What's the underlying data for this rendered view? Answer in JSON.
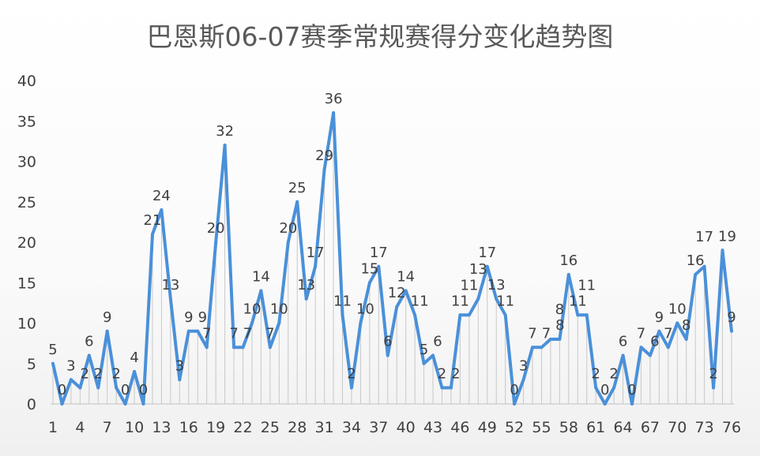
{
  "chart_data": {
    "type": "line",
    "title": "巴恩斯06-07赛季常规赛得分变化趋势图",
    "xlabel": "",
    "ylabel": "",
    "x": [
      1,
      2,
      3,
      4,
      5,
      6,
      7,
      8,
      9,
      10,
      11,
      12,
      13,
      14,
      15,
      16,
      17,
      18,
      19,
      20,
      21,
      22,
      23,
      24,
      25,
      26,
      27,
      28,
      29,
      30,
      31,
      32,
      33,
      34,
      35,
      36,
      37,
      38,
      39,
      40,
      41,
      42,
      43,
      44,
      45,
      46,
      47,
      48,
      49,
      50,
      51,
      52,
      53,
      54,
      55,
      56,
      57,
      58,
      59,
      60,
      61,
      62,
      63,
      64,
      65,
      66,
      67,
      68,
      69,
      70,
      71,
      72,
      73,
      74,
      75,
      76
    ],
    "x_tick_labels": [
      "1",
      "4",
      "7",
      "10",
      "13",
      "16",
      "19",
      "22",
      "25",
      "28",
      "31",
      "34",
      "37",
      "40",
      "43",
      "46",
      "49",
      "52",
      "55",
      "58",
      "61",
      "64",
      "67",
      "70",
      "73",
      "76"
    ],
    "values": [
      5,
      0,
      3,
      2,
      6,
      2,
      9,
      2,
      0,
      4,
      0,
      21,
      24,
      13,
      3,
      9,
      9,
      7,
      20,
      32,
      7,
      7,
      10,
      14,
      7,
      10,
      20,
      25,
      13,
      17,
      29,
      36,
      11,
      2,
      10,
      15,
      17,
      6,
      12,
      14,
      11,
      5,
      6,
      2,
      2,
      11,
      11,
      13,
      17,
      13,
      11,
      0,
      3,
      7,
      7,
      8,
      8,
      16,
      11,
      11,
      2,
      0,
      2,
      6,
      0,
      7,
      6,
      9,
      7,
      10,
      8,
      16,
      17,
      2,
      19,
      9
    ],
    "ylim": [
      0,
      40
    ],
    "y_ticks": [
      "0",
      "5",
      "10",
      "15",
      "20",
      "25",
      "30",
      "35",
      "40"
    ],
    "data_labels": true,
    "drop_lines": true,
    "grid": false,
    "legend": "none",
    "line_color": "#4a90d9"
  }
}
